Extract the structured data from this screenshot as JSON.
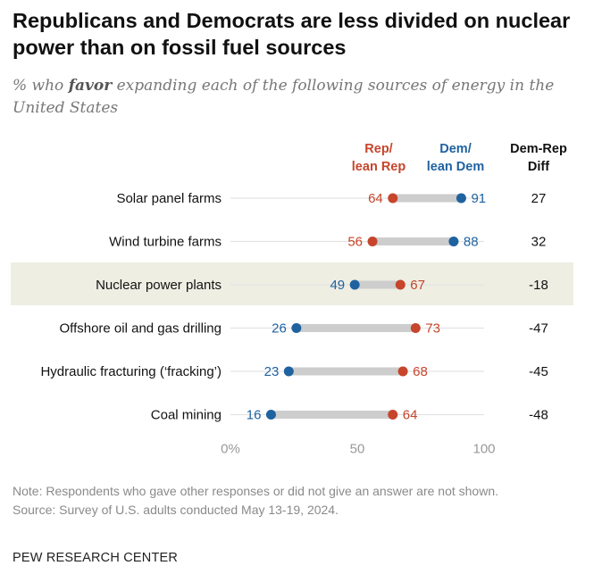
{
  "title": "Republicans and Democrats are less divided on nuclear power than on fossil fuel sources",
  "subtitle": {
    "pre": "% who ",
    "emphasis": "favor",
    "post": " expanding each of the following sources of energy in the United States"
  },
  "headers": {
    "rep_line1": "Rep/",
    "rep_line2": "lean Rep",
    "dem_line1": "Dem/",
    "dem_line2": "lean Dem",
    "diff_line1": "Dem-Rep",
    "diff_line2": "Diff"
  },
  "colors": {
    "rep": "#c6452b",
    "dem": "#1f62a0",
    "highlight": "#eeeee3",
    "track": "#e3e3e3",
    "connector": "#cdcdcd"
  },
  "chart_data": {
    "type": "dot",
    "categories": [
      "Solar panel farms",
      "Wind turbine farms",
      "Nuclear power plants",
      "Offshore oil and gas drilling",
      "Hydraulic fracturing (‘fracking’)",
      "Coal mining"
    ],
    "series": [
      {
        "name": "Rep/lean Rep",
        "values": [
          64,
          56,
          67,
          73,
          68,
          64
        ]
      },
      {
        "name": "Dem/lean Dem",
        "values": [
          91,
          88,
          49,
          26,
          23,
          16
        ]
      }
    ],
    "diff": [
      "27",
      "32",
      "-18",
      "-47",
      "-45",
      "-48"
    ],
    "highlighted_category": "Nuclear power plants",
    "xlim": [
      0,
      100
    ],
    "xticks": [
      "0%",
      "50",
      "100"
    ]
  },
  "notes": {
    "note": "Note: Respondents who gave other responses or did not give an answer are not shown.",
    "source": "Source: Survey of U.S. adults conducted May 13-19, 2024."
  },
  "org": "PEW RESEARCH CENTER"
}
